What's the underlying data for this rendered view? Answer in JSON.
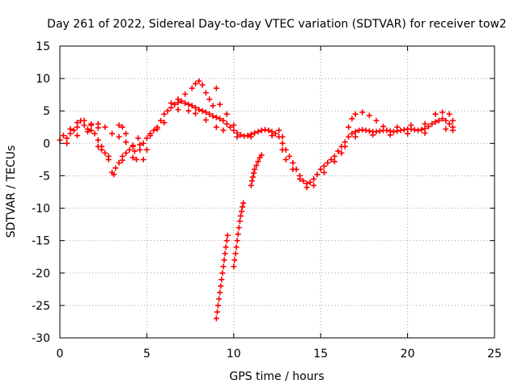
{
  "chart_data": {
    "type": "scatter",
    "title": "Day 261 of 2022, Sidereal Day-to-day VTEC variation (SDTVAR) for receiver tow2",
    "xlabel": "GPS time / hours",
    "ylabel": "SDTVAR / TECUs",
    "xlim": [
      0,
      25
    ],
    "ylim": [
      -30,
      15
    ],
    "xticks": [
      0,
      5,
      10,
      15,
      20,
      25
    ],
    "yticks": [
      -30,
      -25,
      -20,
      -15,
      -10,
      -5,
      0,
      5,
      10,
      15
    ],
    "grid": true,
    "marker": "+",
    "color": "#ff0000",
    "series": [
      {
        "name": "main-band",
        "points": [
          [
            0.0,
            0.5
          ],
          [
            0.2,
            1.2
          ],
          [
            0.4,
            0.8
          ],
          [
            0.6,
            1.5
          ],
          [
            0.8,
            2.0
          ],
          [
            1.0,
            2.5
          ],
          [
            1.2,
            3.5
          ],
          [
            1.4,
            2.8
          ],
          [
            1.6,
            2.2
          ],
          [
            1.8,
            2.0
          ],
          [
            2.0,
            1.5
          ],
          [
            2.2,
            0.5
          ],
          [
            2.4,
            -0.5
          ],
          [
            2.6,
            -1.5
          ],
          [
            2.8,
            -2.5
          ],
          [
            3.0,
            -4.5
          ],
          [
            3.2,
            -3.8
          ],
          [
            3.4,
            -3.0
          ],
          [
            3.6,
            -2.0
          ],
          [
            3.8,
            -1.5
          ],
          [
            4.0,
            -1.0
          ],
          [
            4.2,
            -0.5
          ],
          [
            4.4,
            -2.5
          ],
          [
            4.6,
            -1.0
          ],
          [
            4.8,
            0.0
          ],
          [
            5.0,
            0.8
          ],
          [
            5.2,
            1.5
          ],
          [
            5.4,
            2.0
          ],
          [
            5.6,
            2.5
          ],
          [
            5.8,
            3.5
          ],
          [
            6.0,
            4.5
          ],
          [
            6.2,
            5.0
          ],
          [
            6.4,
            5.5
          ],
          [
            6.6,
            6.0
          ],
          [
            6.8,
            6.3
          ],
          [
            7.0,
            6.5
          ],
          [
            7.2,
            6.2
          ],
          [
            7.4,
            6.0
          ],
          [
            7.6,
            5.8
          ],
          [
            7.8,
            5.5
          ],
          [
            8.0,
            5.2
          ],
          [
            8.2,
            5.0
          ],
          [
            8.4,
            4.8
          ],
          [
            8.6,
            4.5
          ],
          [
            8.8,
            4.2
          ],
          [
            9.0,
            4.0
          ],
          [
            9.2,
            3.8
          ],
          [
            9.4,
            3.5
          ],
          [
            9.6,
            3.0
          ],
          [
            9.8,
            2.5
          ],
          [
            10.0,
            2.0
          ],
          [
            10.2,
            1.6
          ],
          [
            10.4,
            1.3
          ],
          [
            10.6,
            1.1
          ],
          [
            10.8,
            1.2
          ],
          [
            11.0,
            1.4
          ],
          [
            11.2,
            1.6
          ],
          [
            11.4,
            1.8
          ],
          [
            11.6,
            2.0
          ],
          [
            11.8,
            2.1
          ],
          [
            12.0,
            2.0
          ],
          [
            12.2,
            1.8
          ],
          [
            12.4,
            1.5
          ],
          [
            12.6,
            1.0
          ],
          [
            12.8,
            0.0
          ],
          [
            13.0,
            -1.0
          ],
          [
            13.2,
            -2.0
          ],
          [
            13.4,
            -3.0
          ],
          [
            13.6,
            -4.0
          ],
          [
            13.8,
            -5.0
          ],
          [
            14.0,
            -5.8
          ],
          [
            14.2,
            -6.2
          ],
          [
            14.4,
            -6.0
          ],
          [
            14.6,
            -5.5
          ],
          [
            14.8,
            -4.8
          ],
          [
            15.0,
            -4.0
          ],
          [
            15.2,
            -3.5
          ],
          [
            15.4,
            -3.0
          ],
          [
            15.6,
            -2.5
          ],
          [
            15.8,
            -2.0
          ],
          [
            16.0,
            -1.2
          ],
          [
            16.2,
            -0.5
          ],
          [
            16.4,
            0.2
          ],
          [
            16.6,
            1.0
          ],
          [
            16.8,
            1.5
          ],
          [
            17.0,
            1.8
          ],
          [
            17.2,
            2.0
          ],
          [
            17.4,
            2.1
          ],
          [
            17.6,
            2.0
          ],
          [
            17.8,
            1.9
          ],
          [
            18.0,
            1.8
          ],
          [
            18.2,
            1.8
          ],
          [
            18.4,
            1.9
          ],
          [
            18.6,
            2.0
          ],
          [
            18.8,
            2.0
          ],
          [
            19.0,
            1.9
          ],
          [
            19.2,
            1.8
          ],
          [
            19.4,
            1.9
          ],
          [
            19.6,
            2.0
          ],
          [
            19.8,
            2.1
          ],
          [
            20.0,
            2.2
          ],
          [
            20.2,
            2.2
          ],
          [
            20.4,
            2.1
          ],
          [
            20.6,
            2.0
          ],
          [
            20.8,
            2.1
          ],
          [
            21.0,
            2.3
          ],
          [
            21.2,
            2.6
          ],
          [
            21.4,
            3.0
          ],
          [
            21.6,
            3.3
          ],
          [
            21.8,
            3.5
          ],
          [
            22.0,
            3.8
          ],
          [
            22.2,
            3.5
          ],
          [
            22.4,
            3.0
          ],
          [
            22.6,
            2.5
          ]
        ]
      },
      {
        "name": "upper-band",
        "points": [
          [
            0.6,
            2.2
          ],
          [
            1.0,
            3.2
          ],
          [
            1.4,
            3.5
          ],
          [
            1.8,
            2.8
          ],
          [
            2.2,
            2.4
          ],
          [
            2.6,
            2.5
          ],
          [
            3.0,
            1.5
          ],
          [
            3.4,
            1.0
          ],
          [
            3.8,
            0.2
          ],
          [
            6.4,
            6.2
          ],
          [
            6.8,
            6.8
          ],
          [
            7.2,
            7.6
          ],
          [
            7.6,
            8.5
          ],
          [
            7.8,
            9.2
          ],
          [
            8.0,
            9.6
          ],
          [
            8.2,
            9.0
          ],
          [
            8.4,
            7.8
          ],
          [
            8.6,
            6.8
          ],
          [
            8.8,
            5.8
          ],
          [
            9.0,
            8.5
          ],
          [
            9.2,
            6.0
          ],
          [
            9.6,
            4.5
          ],
          [
            10.0,
            2.8
          ],
          [
            12.6,
            2.0
          ],
          [
            12.8,
            1.0
          ],
          [
            16.6,
            2.5
          ],
          [
            16.8,
            3.8
          ],
          [
            17.0,
            4.5
          ],
          [
            17.4,
            4.8
          ],
          [
            17.8,
            4.3
          ],
          [
            18.2,
            3.5
          ],
          [
            18.6,
            2.6
          ],
          [
            19.4,
            2.5
          ],
          [
            20.2,
            2.8
          ],
          [
            21.0,
            3.0
          ],
          [
            21.6,
            4.5
          ],
          [
            22.0,
            4.8
          ],
          [
            22.4,
            4.5
          ],
          [
            22.6,
            3.5
          ]
        ]
      },
      {
        "name": "lower-band",
        "points": [
          [
            0.4,
            0.0
          ],
          [
            1.0,
            1.2
          ],
          [
            1.6,
            1.8
          ],
          [
            2.2,
            -0.5
          ],
          [
            2.4,
            -1.0
          ],
          [
            3.6,
            -2.6
          ],
          [
            4.2,
            -2.2
          ],
          [
            5.2,
            1.2
          ],
          [
            5.6,
            2.2
          ],
          [
            6.0,
            3.2
          ],
          [
            6.8,
            5.2
          ],
          [
            7.4,
            5.0
          ],
          [
            7.8,
            4.6
          ],
          [
            8.4,
            3.6
          ],
          [
            9.0,
            2.5
          ],
          [
            9.4,
            2.0
          ],
          [
            10.2,
            1.0
          ],
          [
            11.0,
            1.0
          ],
          [
            12.2,
            1.2
          ],
          [
            12.8,
            -1.0
          ],
          [
            13.0,
            -2.5
          ],
          [
            13.4,
            -4.0
          ],
          [
            13.8,
            -5.5
          ],
          [
            14.2,
            -6.8
          ],
          [
            14.6,
            -6.5
          ],
          [
            15.2,
            -4.5
          ],
          [
            15.8,
            -2.8
          ],
          [
            16.2,
            -1.5
          ],
          [
            16.4,
            -0.5
          ],
          [
            17.0,
            1.0
          ],
          [
            18.0,
            1.3
          ],
          [
            19.0,
            1.3
          ],
          [
            20.0,
            1.5
          ],
          [
            21.0,
            1.6
          ],
          [
            22.2,
            2.2
          ],
          [
            22.6,
            2.0
          ]
        ]
      },
      {
        "name": "isolated-points",
        "points": [
          [
            1.8,
            3.0
          ],
          [
            2.2,
            3.0
          ],
          [
            3.4,
            2.8
          ],
          [
            3.6,
            2.5
          ],
          [
            3.8,
            1.5
          ],
          [
            4.2,
            -0.3
          ],
          [
            4.3,
            -1.2
          ],
          [
            4.5,
            0.8
          ],
          [
            4.6,
            -0.2
          ],
          [
            4.8,
            -2.5
          ],
          [
            5.0,
            -1.0
          ],
          [
            2.8,
            -2.0
          ],
          [
            3.1,
            -4.8
          ]
        ]
      },
      {
        "name": "steep-arc",
        "points": [
          [
            9.0,
            -27.0
          ],
          [
            9.05,
            -26.0
          ],
          [
            9.1,
            -25.0
          ],
          [
            9.15,
            -24.0
          ],
          [
            9.2,
            -23.0
          ],
          [
            9.25,
            -22.0
          ],
          [
            9.3,
            -21.0
          ],
          [
            9.35,
            -20.0
          ],
          [
            9.4,
            -19.0
          ],
          [
            9.45,
            -18.0
          ],
          [
            9.5,
            -17.0
          ],
          [
            9.55,
            -16.0
          ],
          [
            9.6,
            -15.0
          ],
          [
            9.65,
            -14.2
          ],
          [
            10.0,
            -19.0
          ],
          [
            10.05,
            -18.0
          ],
          [
            10.1,
            -17.0
          ],
          [
            10.15,
            -16.0
          ],
          [
            10.2,
            -15.0
          ],
          [
            10.25,
            -14.0
          ],
          [
            10.3,
            -13.0
          ],
          [
            10.35,
            -12.0
          ],
          [
            10.4,
            -11.2
          ],
          [
            10.45,
            -10.5
          ],
          [
            10.5,
            -9.8
          ],
          [
            10.55,
            -9.2
          ],
          [
            11.0,
            -6.5
          ],
          [
            11.05,
            -5.8
          ],
          [
            11.1,
            -5.2
          ],
          [
            11.15,
            -4.6
          ],
          [
            11.2,
            -4.0
          ],
          [
            11.3,
            -3.4
          ],
          [
            11.4,
            -2.8
          ],
          [
            11.5,
            -2.2
          ],
          [
            11.6,
            -1.8
          ]
        ]
      }
    ]
  }
}
